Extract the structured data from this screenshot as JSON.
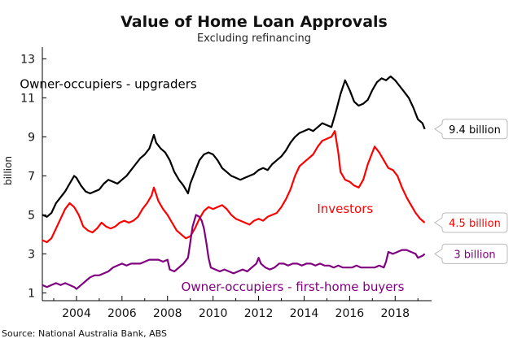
{
  "chart_data": {
    "type": "line",
    "title": "Value of Home Loan Approvals",
    "subtitle": "Excluding refinancing",
    "ylabel": "billion",
    "xlabel": "",
    "xlim": [
      2002.5,
      2019.6
    ],
    "ylim": [
      0.6,
      13.6
    ],
    "yticks": [
      1,
      3,
      5,
      7,
      9,
      11,
      13
    ],
    "xticks": [
      2004,
      2006,
      2008,
      2010,
      2012,
      2014,
      2016,
      2018
    ],
    "grid": false,
    "source": "Source: National Australia Bank, ABS",
    "series": [
      {
        "name": "Owner-occupiers - upgraders",
        "color": "#000000",
        "end_label": "9.4 billion",
        "points": [
          [
            2002.5,
            5.0
          ],
          [
            2002.7,
            4.9
          ],
          [
            2002.9,
            5.1
          ],
          [
            2003.1,
            5.6
          ],
          [
            2003.3,
            5.9
          ],
          [
            2003.5,
            6.2
          ],
          [
            2003.7,
            6.6
          ],
          [
            2003.9,
            7.0
          ],
          [
            2004.0,
            6.9
          ],
          [
            2004.2,
            6.5
          ],
          [
            2004.4,
            6.2
          ],
          [
            2004.6,
            6.1
          ],
          [
            2004.8,
            6.2
          ],
          [
            2005.0,
            6.3
          ],
          [
            2005.2,
            6.6
          ],
          [
            2005.4,
            6.8
          ],
          [
            2005.6,
            6.7
          ],
          [
            2005.8,
            6.6
          ],
          [
            2006.0,
            6.8
          ],
          [
            2006.2,
            7.0
          ],
          [
            2006.4,
            7.3
          ],
          [
            2006.6,
            7.6
          ],
          [
            2006.8,
            7.9
          ],
          [
            2007.0,
            8.1
          ],
          [
            2007.2,
            8.4
          ],
          [
            2007.4,
            9.1
          ],
          [
            2007.5,
            8.7
          ],
          [
            2007.7,
            8.4
          ],
          [
            2007.9,
            8.2
          ],
          [
            2008.1,
            7.8
          ],
          [
            2008.3,
            7.2
          ],
          [
            2008.5,
            6.8
          ],
          [
            2008.7,
            6.5
          ],
          [
            2008.8,
            6.3
          ],
          [
            2008.9,
            6.1
          ],
          [
            2009.0,
            6.6
          ],
          [
            2009.2,
            7.2
          ],
          [
            2009.4,
            7.8
          ],
          [
            2009.6,
            8.1
          ],
          [
            2009.8,
            8.2
          ],
          [
            2010.0,
            8.1
          ],
          [
            2010.2,
            7.8
          ],
          [
            2010.4,
            7.4
          ],
          [
            2010.6,
            7.2
          ],
          [
            2010.8,
            7.0
          ],
          [
            2011.0,
            6.9
          ],
          [
            2011.2,
            6.8
          ],
          [
            2011.4,
            6.9
          ],
          [
            2011.6,
            7.0
          ],
          [
            2011.8,
            7.1
          ],
          [
            2012.0,
            7.3
          ],
          [
            2012.2,
            7.4
          ],
          [
            2012.4,
            7.3
          ],
          [
            2012.6,
            7.6
          ],
          [
            2012.8,
            7.8
          ],
          [
            2013.0,
            8.0
          ],
          [
            2013.2,
            8.3
          ],
          [
            2013.4,
            8.7
          ],
          [
            2013.6,
            9.0
          ],
          [
            2013.8,
            9.2
          ],
          [
            2014.0,
            9.3
          ],
          [
            2014.2,
            9.4
          ],
          [
            2014.4,
            9.3
          ],
          [
            2014.6,
            9.5
          ],
          [
            2014.8,
            9.7
          ],
          [
            2015.0,
            9.6
          ],
          [
            2015.2,
            9.5
          ],
          [
            2015.4,
            10.3
          ],
          [
            2015.6,
            11.2
          ],
          [
            2015.8,
            11.9
          ],
          [
            2016.0,
            11.4
          ],
          [
            2016.2,
            10.8
          ],
          [
            2016.4,
            10.6
          ],
          [
            2016.6,
            10.7
          ],
          [
            2016.8,
            10.9
          ],
          [
            2017.0,
            11.4
          ],
          [
            2017.2,
            11.8
          ],
          [
            2017.4,
            12.0
          ],
          [
            2017.6,
            11.9
          ],
          [
            2017.8,
            12.1
          ],
          [
            2018.0,
            11.9
          ],
          [
            2018.2,
            11.6
          ],
          [
            2018.4,
            11.3
          ],
          [
            2018.6,
            11.0
          ],
          [
            2018.8,
            10.5
          ],
          [
            2019.0,
            9.9
          ],
          [
            2019.2,
            9.7
          ],
          [
            2019.3,
            9.4
          ]
        ]
      },
      {
        "name": "Investors",
        "color": "#ff0000",
        "end_label": "4.5 billion",
        "points": [
          [
            2002.5,
            3.7
          ],
          [
            2002.7,
            3.6
          ],
          [
            2002.9,
            3.8
          ],
          [
            2003.1,
            4.3
          ],
          [
            2003.3,
            4.8
          ],
          [
            2003.5,
            5.3
          ],
          [
            2003.7,
            5.6
          ],
          [
            2003.9,
            5.4
          ],
          [
            2004.1,
            5.0
          ],
          [
            2004.3,
            4.4
          ],
          [
            2004.5,
            4.2
          ],
          [
            2004.7,
            4.1
          ],
          [
            2004.9,
            4.3
          ],
          [
            2005.1,
            4.6
          ],
          [
            2005.3,
            4.4
          ],
          [
            2005.5,
            4.3
          ],
          [
            2005.7,
            4.4
          ],
          [
            2005.9,
            4.6
          ],
          [
            2006.1,
            4.7
          ],
          [
            2006.3,
            4.6
          ],
          [
            2006.5,
            4.7
          ],
          [
            2006.7,
            4.9
          ],
          [
            2006.9,
            5.3
          ],
          [
            2007.1,
            5.6
          ],
          [
            2007.3,
            6.0
          ],
          [
            2007.4,
            6.4
          ],
          [
            2007.6,
            5.7
          ],
          [
            2007.8,
            5.3
          ],
          [
            2008.0,
            5.0
          ],
          [
            2008.2,
            4.6
          ],
          [
            2008.4,
            4.2
          ],
          [
            2008.6,
            4.0
          ],
          [
            2008.8,
            3.8
          ],
          [
            2009.0,
            3.9
          ],
          [
            2009.2,
            4.3
          ],
          [
            2009.4,
            4.8
          ],
          [
            2009.6,
            5.2
          ],
          [
            2009.8,
            5.4
          ],
          [
            2010.0,
            5.3
          ],
          [
            2010.2,
            5.4
          ],
          [
            2010.4,
            5.5
          ],
          [
            2010.6,
            5.3
          ],
          [
            2010.8,
            5.0
          ],
          [
            2011.0,
            4.8
          ],
          [
            2011.2,
            4.7
          ],
          [
            2011.4,
            4.6
          ],
          [
            2011.6,
            4.5
          ],
          [
            2011.8,
            4.7
          ],
          [
            2012.0,
            4.8
          ],
          [
            2012.2,
            4.7
          ],
          [
            2012.4,
            4.9
          ],
          [
            2012.6,
            5.0
          ],
          [
            2012.8,
            5.1
          ],
          [
            2013.0,
            5.4
          ],
          [
            2013.2,
            5.8
          ],
          [
            2013.4,
            6.3
          ],
          [
            2013.6,
            7.0
          ],
          [
            2013.8,
            7.5
          ],
          [
            2014.0,
            7.7
          ],
          [
            2014.2,
            7.9
          ],
          [
            2014.4,
            8.1
          ],
          [
            2014.6,
            8.5
          ],
          [
            2014.8,
            8.8
          ],
          [
            2015.0,
            8.9
          ],
          [
            2015.2,
            9.0
          ],
          [
            2015.35,
            9.3
          ],
          [
            2015.5,
            8.2
          ],
          [
            2015.6,
            7.2
          ],
          [
            2015.8,
            6.8
          ],
          [
            2016.0,
            6.7
          ],
          [
            2016.2,
            6.5
          ],
          [
            2016.4,
            6.4
          ],
          [
            2016.6,
            6.8
          ],
          [
            2016.8,
            7.6
          ],
          [
            2017.0,
            8.2
          ],
          [
            2017.1,
            8.5
          ],
          [
            2017.3,
            8.2
          ],
          [
            2017.5,
            7.8
          ],
          [
            2017.7,
            7.4
          ],
          [
            2017.9,
            7.3
          ],
          [
            2018.1,
            7.0
          ],
          [
            2018.3,
            6.4
          ],
          [
            2018.5,
            5.9
          ],
          [
            2018.7,
            5.5
          ],
          [
            2018.9,
            5.1
          ],
          [
            2019.1,
            4.8
          ],
          [
            2019.3,
            4.6
          ]
        ]
      },
      {
        "name": "Owner-occupiers - first-home buyers",
        "color": "#800080",
        "end_label": "3 billion",
        "points": [
          [
            2002.5,
            1.4
          ],
          [
            2002.7,
            1.3
          ],
          [
            2002.9,
            1.4
          ],
          [
            2003.1,
            1.5
          ],
          [
            2003.3,
            1.4
          ],
          [
            2003.5,
            1.5
          ],
          [
            2003.7,
            1.4
          ],
          [
            2003.9,
            1.3
          ],
          [
            2004.0,
            1.2
          ],
          [
            2004.2,
            1.4
          ],
          [
            2004.4,
            1.6
          ],
          [
            2004.6,
            1.8
          ],
          [
            2004.8,
            1.9
          ],
          [
            2005.0,
            1.9
          ],
          [
            2005.2,
            2.0
          ],
          [
            2005.4,
            2.1
          ],
          [
            2005.6,
            2.3
          ],
          [
            2005.8,
            2.4
          ],
          [
            2006.0,
            2.5
          ],
          [
            2006.2,
            2.4
          ],
          [
            2006.4,
            2.5
          ],
          [
            2006.6,
            2.5
          ],
          [
            2006.8,
            2.5
          ],
          [
            2007.0,
            2.6
          ],
          [
            2007.2,
            2.7
          ],
          [
            2007.4,
            2.7
          ],
          [
            2007.6,
            2.7
          ],
          [
            2007.8,
            2.6
          ],
          [
            2008.0,
            2.7
          ],
          [
            2008.1,
            2.2
          ],
          [
            2008.3,
            2.1
          ],
          [
            2008.5,
            2.3
          ],
          [
            2008.7,
            2.5
          ],
          [
            2008.9,
            2.8
          ],
          [
            2009.0,
            3.6
          ],
          [
            2009.1,
            4.4
          ],
          [
            2009.25,
            5.0
          ],
          [
            2009.4,
            4.9
          ],
          [
            2009.5,
            4.7
          ],
          [
            2009.6,
            4.3
          ],
          [
            2009.7,
            3.6
          ],
          [
            2009.8,
            2.8
          ],
          [
            2009.9,
            2.3
          ],
          [
            2010.1,
            2.2
          ],
          [
            2010.3,
            2.1
          ],
          [
            2010.5,
            2.2
          ],
          [
            2010.7,
            2.1
          ],
          [
            2010.9,
            2.0
          ],
          [
            2011.1,
            2.1
          ],
          [
            2011.3,
            2.2
          ],
          [
            2011.5,
            2.1
          ],
          [
            2011.7,
            2.3
          ],
          [
            2011.9,
            2.5
          ],
          [
            2012.0,
            2.8
          ],
          [
            2012.1,
            2.5
          ],
          [
            2012.3,
            2.3
          ],
          [
            2012.5,
            2.2
          ],
          [
            2012.7,
            2.3
          ],
          [
            2012.9,
            2.5
          ],
          [
            2013.1,
            2.5
          ],
          [
            2013.3,
            2.4
          ],
          [
            2013.5,
            2.5
          ],
          [
            2013.7,
            2.5
          ],
          [
            2013.9,
            2.4
          ],
          [
            2014.1,
            2.5
          ],
          [
            2014.3,
            2.5
          ],
          [
            2014.5,
            2.4
          ],
          [
            2014.7,
            2.5
          ],
          [
            2014.9,
            2.4
          ],
          [
            2015.1,
            2.4
          ],
          [
            2015.3,
            2.3
          ],
          [
            2015.5,
            2.4
          ],
          [
            2015.7,
            2.3
          ],
          [
            2015.9,
            2.3
          ],
          [
            2016.1,
            2.3
          ],
          [
            2016.3,
            2.4
          ],
          [
            2016.5,
            2.3
          ],
          [
            2016.7,
            2.3
          ],
          [
            2016.9,
            2.3
          ],
          [
            2017.1,
            2.3
          ],
          [
            2017.3,
            2.4
          ],
          [
            2017.5,
            2.3
          ],
          [
            2017.6,
            2.6
          ],
          [
            2017.7,
            3.1
          ],
          [
            2017.9,
            3.0
          ],
          [
            2018.1,
            3.1
          ],
          [
            2018.3,
            3.2
          ],
          [
            2018.5,
            3.2
          ],
          [
            2018.7,
            3.1
          ],
          [
            2018.9,
            3.0
          ],
          [
            2019.0,
            2.8
          ],
          [
            2019.2,
            2.9
          ],
          [
            2019.3,
            3.0
          ]
        ]
      }
    ],
    "annotations": [
      {
        "text": "Owner-occupiers - upgraders",
        "x": 2005.4,
        "y": 11.5,
        "color": "#000000"
      },
      {
        "text": "Investors",
        "x": 2015.8,
        "y": 5.1,
        "color": "#ff0000"
      },
      {
        "text": "Owner-occupiers - first-home buyers",
        "x": 2013.5,
        "y": 1.1,
        "color": "#800080"
      }
    ]
  }
}
